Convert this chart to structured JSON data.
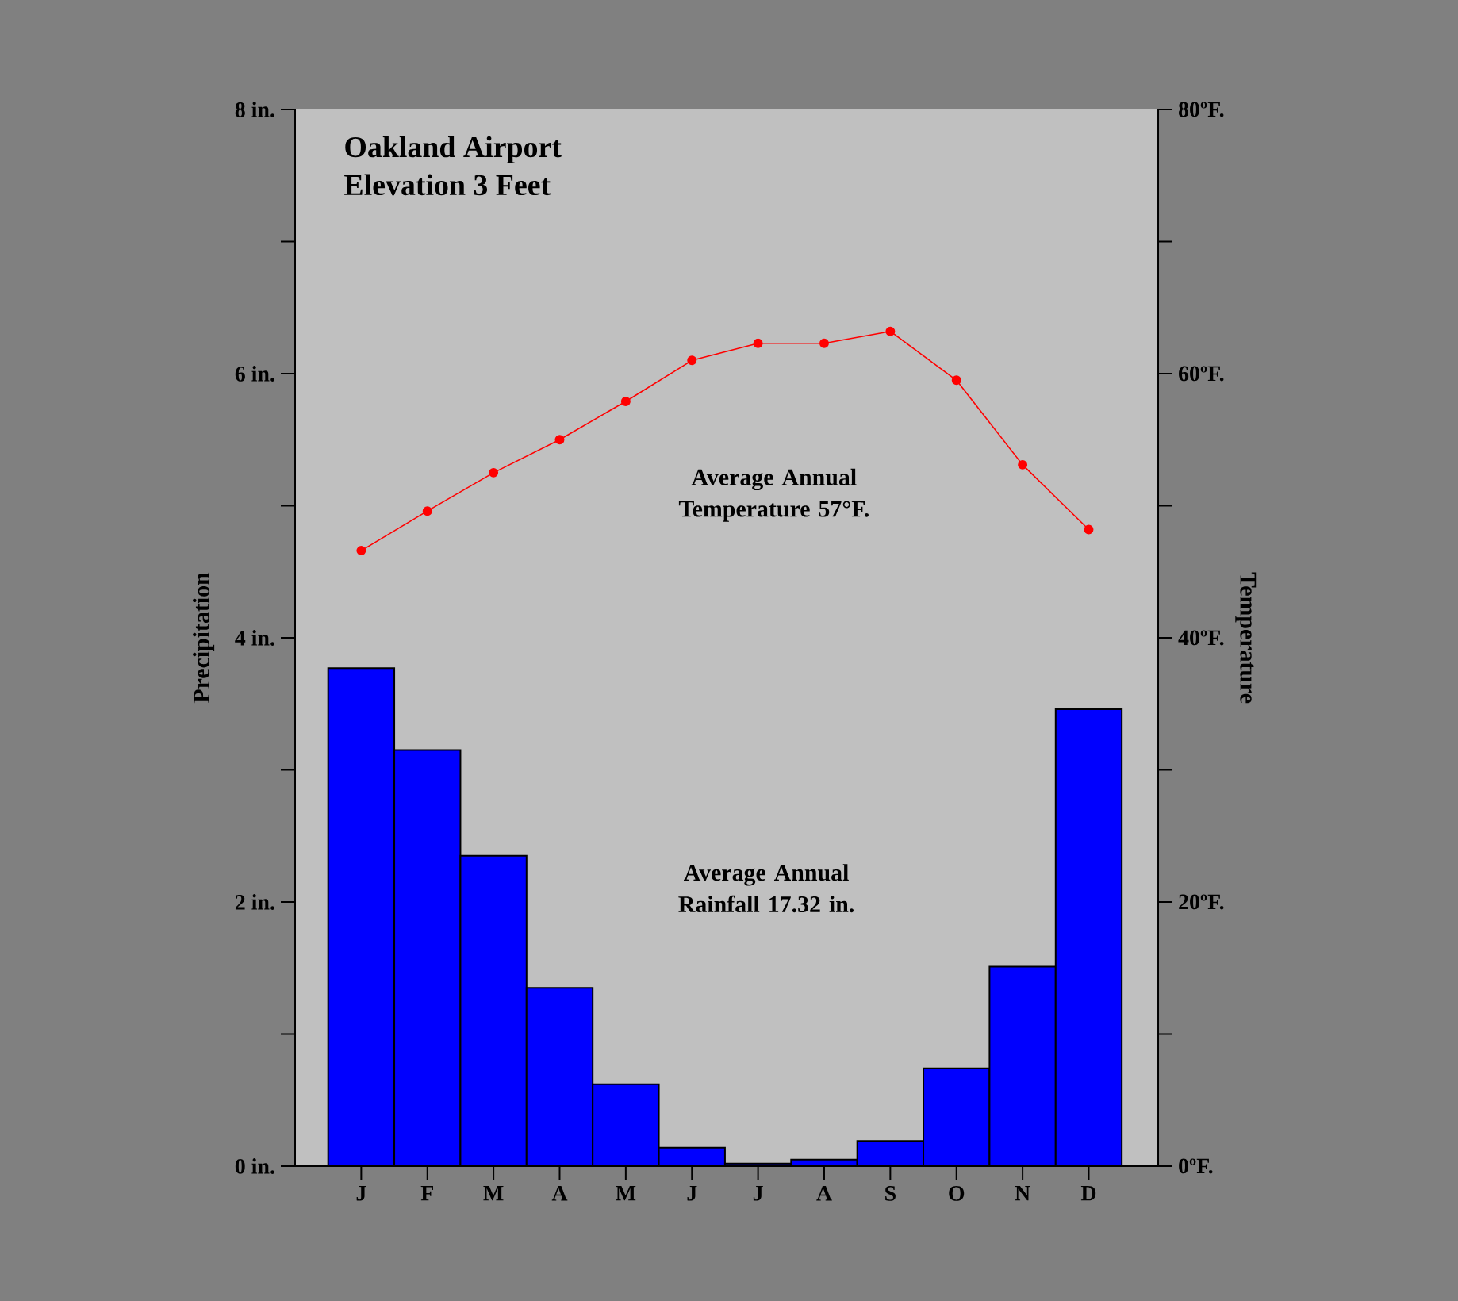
{
  "chart_data": {
    "type": "bar",
    "title": "Oakland Airport",
    "subtitle": "Elevation 3 Feet",
    "ylabel": "Precipitation",
    "y2label": "Temperature",
    "annotations": [
      "Average Annual Temperature 57°F.",
      "Average Annual Rainfall 17.32 in."
    ],
    "categories": [
      "J",
      "F",
      "M",
      "A",
      "M",
      "J",
      "J",
      "A",
      "S",
      "O",
      "N",
      "D"
    ],
    "series": [
      {
        "color": "#0000ff",
        "values": [
          3.77,
          3.15,
          2.35,
          1.35,
          0.62,
          0.14,
          0.02,
          0.05,
          0.19,
          0.74,
          1.51,
          3.46
        ]
      },
      {
        "type": "line",
        "axis": "y2",
        "color": "#ff0000",
        "values": [
          46.6,
          49.6,
          52.5,
          55.0,
          57.9,
          61.0,
          62.3,
          62.3,
          63.2,
          59.5,
          53.1,
          48.2
        ]
      }
    ],
    "marker": "circle",
    "ylim": [
      0,
      8
    ],
    "yticks": [
      {
        "value": 0,
        "label": "0 in."
      },
      {
        "value": 1,
        "label": null
      },
      {
        "value": 2,
        "label": "2 in."
      },
      {
        "value": 3,
        "label": null
      },
      {
        "value": 4,
        "label": "4 in."
      },
      {
        "value": 5,
        "label": null
      },
      {
        "value": 6,
        "label": "6 in."
      },
      {
        "value": 7,
        "label": null
      },
      {
        "value": 8,
        "label": "8 in."
      }
    ],
    "y2lim": [
      0,
      80
    ],
    "y2ticks": [
      {
        "value": 0,
        "label": "0ºF."
      },
      {
        "value": 10,
        "label": null
      },
      {
        "value": 20,
        "label": "20ºF."
      },
      {
        "value": 30,
        "label": null
      },
      {
        "value": 40,
        "label": "40ºF."
      },
      {
        "value": 50,
        "label": null
      },
      {
        "value": 60,
        "label": "60ºF."
      },
      {
        "value": 70,
        "label": null
      },
      {
        "value": 80,
        "label": "80ºF."
      }
    ]
  }
}
